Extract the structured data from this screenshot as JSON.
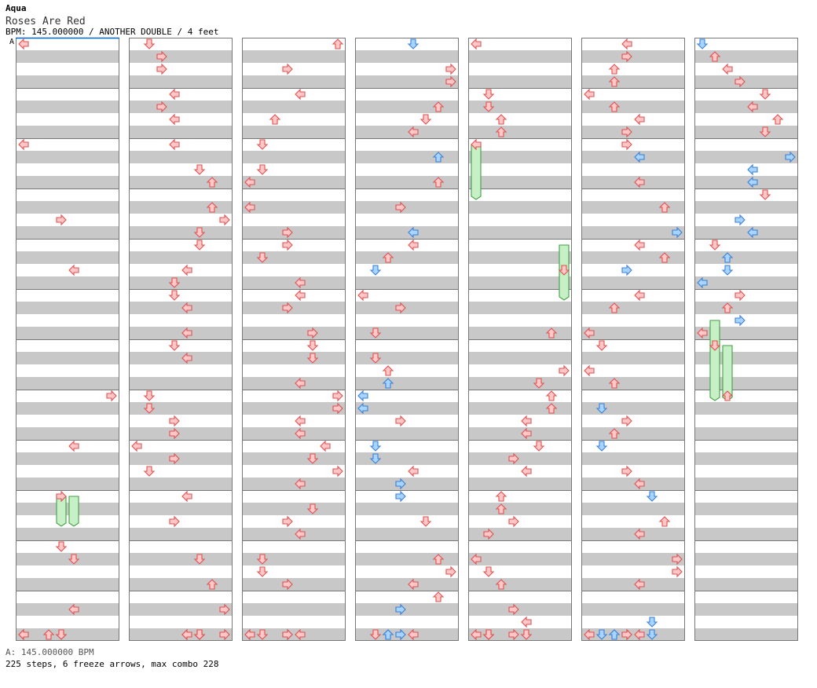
{
  "header": {
    "artist": "Aqua",
    "title": "Roses Are Red",
    "meta": "BPM: 145.000000 / ANOTHER DOUBLE / 4 feet",
    "bpm_marker": "A"
  },
  "footer": {
    "bpm_line": "A: 145.000000 BPM",
    "stats": "225 steps, 6 freeze arrows, max combo 228"
  },
  "colors": {
    "red_fill": "#ffc8c8",
    "red_stroke": "#e05050",
    "blue_fill": "#a8d4ff",
    "blue_stroke": "#3a80d8",
    "freeze_fill": "#c8f0c8",
    "freeze_stroke": "#40a040",
    "stripe": "#c8c8c8",
    "border": "#777777",
    "marker": "#0066cc"
  },
  "chart": {
    "columns": 7,
    "measures_per_column": 12,
    "lanes": 8,
    "arrow_kinds": {
      "L": "left",
      "D": "down",
      "U": "up",
      "R": "right"
    },
    "notes": [
      [
        0,
        0,
        "L",
        "red"
      ],
      [
        1,
        1,
        "D",
        "red"
      ],
      [
        2,
        7,
        "U",
        "red"
      ],
      [
        3,
        4,
        "D",
        "blue"
      ],
      [
        4,
        0,
        "L",
        "red"
      ],
      [
        5,
        3,
        "L",
        "red"
      ],
      [
        6,
        0,
        "D",
        "blue"
      ],
      [
        1,
        2,
        "R",
        "red"
      ],
      [
        5,
        3,
        "R",
        "red"
      ],
      [
        6,
        1,
        "U",
        "red"
      ],
      [
        1,
        2,
        "R",
        "red"
      ],
      [
        2,
        3,
        "R",
        "red"
      ],
      [
        3,
        7,
        "R",
        "red"
      ],
      [
        5,
        2,
        "U",
        "red"
      ],
      [
        6,
        2,
        "L",
        "red"
      ],
      [
        3,
        7,
        "R",
        "red"
      ],
      [
        5,
        2,
        "U",
        "red"
      ],
      [
        6,
        3,
        "R",
        "red"
      ],
      [
        1,
        3,
        "L",
        "red"
      ],
      [
        2,
        4,
        "L",
        "red"
      ],
      [
        4,
        1,
        "D",
        "red"
      ],
      [
        5,
        0,
        "L",
        "red"
      ],
      [
        6,
        5,
        "D",
        "red"
      ],
      [
        1,
        2,
        "R",
        "red"
      ],
      [
        3,
        6,
        "U",
        "red"
      ],
      [
        4,
        1,
        "D",
        "red"
      ],
      [
        5,
        2,
        "U",
        "red"
      ],
      [
        6,
        4,
        "L",
        "red"
      ],
      [
        1,
        3,
        "L",
        "red"
      ],
      [
        2,
        2,
        "U",
        "red"
      ],
      [
        3,
        5,
        "D",
        "red"
      ],
      [
        4,
        2,
        "U",
        "red"
      ],
      [
        5,
        4,
        "L",
        "red"
      ],
      [
        6,
        6,
        "U",
        "red"
      ],
      [
        3,
        4,
        "L",
        "red"
      ],
      [
        4,
        2,
        "U",
        "red"
      ],
      [
        5,
        3,
        "R",
        "red"
      ],
      [
        6,
        5,
        "D",
        "red"
      ],
      [
        0,
        0,
        "L",
        "red"
      ],
      [
        1,
        3,
        "L",
        "red"
      ],
      [
        2,
        1,
        "D",
        "red"
      ],
      [
        4,
        0,
        "L",
        "red"
      ],
      [
        5,
        3,
        "R",
        "red"
      ],
      [
        3,
        6,
        "U",
        "blue"
      ],
      [
        5,
        4,
        "L",
        "blue"
      ],
      [
        6,
        7,
        "R",
        "blue"
      ],
      [
        1,
        5,
        "D",
        "red"
      ],
      [
        2,
        1,
        "D",
        "red"
      ],
      [
        6,
        4,
        "L",
        "blue"
      ],
      [
        1,
        6,
        "U",
        "red"
      ],
      [
        2,
        0,
        "L",
        "red"
      ],
      [
        3,
        6,
        "U",
        "red"
      ],
      [
        5,
        4,
        "L",
        "red"
      ],
      [
        6,
        4,
        "L",
        "blue"
      ],
      [
        6,
        5,
        "D",
        "red"
      ],
      [
        1,
        6,
        "U",
        "red"
      ],
      [
        2,
        0,
        "L",
        "red"
      ],
      [
        3,
        3,
        "R",
        "red"
      ],
      [
        5,
        6,
        "U",
        "red"
      ],
      [
        0,
        3,
        "R",
        "red"
      ],
      [
        1,
        7,
        "R",
        "red"
      ],
      [
        6,
        3,
        "R",
        "blue"
      ],
      [
        1,
        5,
        "D",
        "red"
      ],
      [
        2,
        3,
        "R",
        "red"
      ],
      [
        3,
        4,
        "L",
        "blue"
      ],
      [
        5,
        7,
        "R",
        "blue"
      ],
      [
        6,
        4,
        "L",
        "blue"
      ],
      [
        1,
        5,
        "D",
        "red"
      ],
      [
        2,
        3,
        "R",
        "red"
      ],
      [
        3,
        4,
        "L",
        "red"
      ],
      [
        5,
        4,
        "L",
        "red"
      ],
      [
        6,
        1,
        "D",
        "red"
      ],
      [
        2,
        1,
        "D",
        "red"
      ],
      [
        3,
        2,
        "U",
        "red"
      ],
      [
        5,
        6,
        "U",
        "red"
      ],
      [
        6,
        2,
        "U",
        "blue"
      ],
      [
        0,
        4,
        "L",
        "red"
      ],
      [
        1,
        4,
        "L",
        "red"
      ],
      [
        3,
        1,
        "D",
        "blue"
      ],
      [
        4,
        7,
        "D",
        "red"
      ],
      [
        5,
        3,
        "R",
        "blue"
      ],
      [
        6,
        2,
        "D",
        "blue"
      ],
      [
        1,
        3,
        "D",
        "red"
      ],
      [
        2,
        4,
        "L",
        "red"
      ],
      [
        6,
        0,
        "L",
        "blue"
      ],
      [
        1,
        3,
        "D",
        "red"
      ],
      [
        2,
        4,
        "L",
        "red"
      ],
      [
        3,
        0,
        "L",
        "red"
      ],
      [
        5,
        4,
        "L",
        "red"
      ],
      [
        6,
        3,
        "R",
        "red"
      ],
      [
        1,
        4,
        "L",
        "red"
      ],
      [
        2,
        3,
        "R",
        "red"
      ],
      [
        3,
        3,
        "R",
        "red"
      ],
      [
        5,
        2,
        "U",
        "red"
      ],
      [
        6,
        2,
        "U",
        "red"
      ],
      [
        6,
        3,
        "R",
        "blue"
      ],
      [
        1,
        4,
        "L",
        "red"
      ],
      [
        2,
        5,
        "R",
        "red"
      ],
      [
        3,
        1,
        "D",
        "red"
      ],
      [
        4,
        6,
        "U",
        "red"
      ],
      [
        5,
        0,
        "L",
        "red"
      ],
      [
        6,
        0,
        "L",
        "red"
      ],
      [
        1,
        3,
        "D",
        "red"
      ],
      [
        2,
        5,
        "D",
        "red"
      ],
      [
        5,
        1,
        "D",
        "red"
      ],
      [
        6,
        1,
        "D",
        "red"
      ],
      [
        1,
        4,
        "L",
        "red"
      ],
      [
        2,
        5,
        "D",
        "red"
      ],
      [
        3,
        1,
        "D",
        "red"
      ],
      [
        3,
        2,
        "U",
        "red"
      ],
      [
        4,
        7,
        "R",
        "red"
      ],
      [
        5,
        0,
        "L",
        "red"
      ],
      [
        2,
        4,
        "L",
        "red"
      ],
      [
        3,
        2,
        "U",
        "blue"
      ],
      [
        4,
        5,
        "D",
        "red"
      ],
      [
        5,
        2,
        "U",
        "red"
      ],
      [
        0,
        7,
        "R",
        "red"
      ],
      [
        1,
        1,
        "D",
        "red"
      ],
      [
        2,
        7,
        "R",
        "red"
      ],
      [
        3,
        0,
        "L",
        "blue"
      ],
      [
        4,
        6,
        "U",
        "red"
      ],
      [
        6,
        2,
        "U",
        "red"
      ],
      [
        1,
        1,
        "D",
        "red"
      ],
      [
        2,
        7,
        "R",
        "red"
      ],
      [
        3,
        0,
        "L",
        "blue"
      ],
      [
        4,
        6,
        "U",
        "red"
      ],
      [
        5,
        1,
        "D",
        "blue"
      ],
      [
        1,
        3,
        "R",
        "red"
      ],
      [
        2,
        4,
        "L",
        "red"
      ],
      [
        3,
        3,
        "R",
        "red"
      ],
      [
        4,
        4,
        "L",
        "red"
      ],
      [
        5,
        3,
        "R",
        "red"
      ],
      [
        1,
        3,
        "R",
        "red"
      ],
      [
        2,
        4,
        "L",
        "red"
      ],
      [
        4,
        4,
        "L",
        "red"
      ],
      [
        5,
        2,
        "U",
        "red"
      ],
      [
        0,
        4,
        "L",
        "red"
      ],
      [
        1,
        0,
        "L",
        "red"
      ],
      [
        2,
        6,
        "L",
        "red"
      ],
      [
        3,
        1,
        "D",
        "blue"
      ],
      [
        4,
        5,
        "D",
        "red"
      ],
      [
        5,
        1,
        "D",
        "blue"
      ],
      [
        1,
        3,
        "R",
        "red"
      ],
      [
        2,
        5,
        "D",
        "red"
      ],
      [
        3,
        1,
        "D",
        "blue"
      ],
      [
        4,
        3,
        "R",
        "red"
      ],
      [
        1,
        1,
        "D",
        "red"
      ],
      [
        2,
        7,
        "R",
        "red"
      ],
      [
        3,
        4,
        "L",
        "red"
      ],
      [
        4,
        4,
        "L",
        "red"
      ],
      [
        5,
        3,
        "R",
        "red"
      ],
      [
        2,
        4,
        "L",
        "red"
      ],
      [
        3,
        3,
        "R",
        "blue"
      ],
      [
        5,
        4,
        "L",
        "red"
      ],
      [
        0,
        3,
        "R",
        "red"
      ],
      [
        1,
        4,
        "L",
        "red"
      ],
      [
        3,
        3,
        "R",
        "blue"
      ],
      [
        4,
        2,
        "U",
        "red"
      ],
      [
        5,
        5,
        "D",
        "blue"
      ],
      [
        2,
        5,
        "D",
        "red"
      ],
      [
        4,
        2,
        "U",
        "red"
      ],
      [
        1,
        3,
        "R",
        "red"
      ],
      [
        2,
        3,
        "R",
        "red"
      ],
      [
        3,
        5,
        "D",
        "red"
      ],
      [
        4,
        3,
        "R",
        "red"
      ],
      [
        5,
        6,
        "U",
        "red"
      ],
      [
        2,
        4,
        "L",
        "red"
      ],
      [
        4,
        1,
        "R",
        "red"
      ],
      [
        5,
        4,
        "L",
        "red"
      ],
      [
        0,
        3,
        "D",
        "red"
      ],
      [
        0,
        4,
        "D",
        "red"
      ],
      [
        1,
        5,
        "D",
        "red"
      ],
      [
        2,
        1,
        "D",
        "red"
      ],
      [
        3,
        6,
        "U",
        "red"
      ],
      [
        4,
        0,
        "L",
        "red"
      ],
      [
        5,
        7,
        "R",
        "red"
      ],
      [
        2,
        1,
        "D",
        "red"
      ],
      [
        3,
        7,
        "R",
        "red"
      ],
      [
        4,
        1,
        "D",
        "red"
      ],
      [
        5,
        7,
        "R",
        "red"
      ],
      [
        1,
        6,
        "U",
        "red"
      ],
      [
        2,
        3,
        "R",
        "red"
      ],
      [
        3,
        4,
        "L",
        "red"
      ],
      [
        4,
        2,
        "U",
        "red"
      ],
      [
        5,
        4,
        "L",
        "red"
      ],
      [
        3,
        6,
        "U",
        "red"
      ],
      [
        0,
        4,
        "L",
        "red"
      ],
      [
        1,
        7,
        "R",
        "red"
      ],
      [
        3,
        3,
        "R",
        "blue"
      ],
      [
        4,
        3,
        "R",
        "red"
      ],
      [
        4,
        4,
        "L",
        "red"
      ],
      [
        5,
        5,
        "D",
        "blue"
      ],
      [
        0,
        3,
        "D",
        "red"
      ],
      [
        1,
        4,
        "L",
        "red"
      ],
      [
        2,
        0,
        "L",
        "blue"
      ],
      [
        3,
        3,
        "R",
        "blue"
      ],
      [
        4,
        4,
        "D",
        "red"
      ],
      [
        5,
        5,
        "D",
        "blue"
      ],
      [
        5,
        3,
        "R",
        "red"
      ],
      [
        0,
        3,
        "D",
        "red"
      ],
      [
        1,
        5,
        "D",
        "red"
      ],
      [
        2,
        0,
        "L",
        "red"
      ],
      [
        3,
        4,
        "L",
        "red"
      ],
      [
        4,
        1,
        "D",
        "red"
      ],
      [
        5,
        4,
        "L",
        "red"
      ],
      [
        1,
        5,
        "D",
        "red"
      ],
      [
        2,
        1,
        "D",
        "red"
      ],
      [
        4,
        1,
        "D",
        "red"
      ],
      [
        0,
        2,
        "U",
        "red"
      ],
      [
        1,
        4,
        "L",
        "red"
      ],
      [
        3,
        2,
        "U",
        "blue"
      ],
      [
        4,
        3,
        "R",
        "red"
      ],
      [
        5,
        2,
        "U",
        "blue"
      ],
      [
        0,
        0,
        "L",
        "red"
      ],
      [
        1,
        7,
        "R",
        "red"
      ],
      [
        2,
        3,
        "R",
        "blue"
      ],
      [
        3,
        2,
        "U",
        "blue"
      ],
      [
        4,
        1,
        "D",
        "red"
      ],
      [
        5,
        2,
        "U",
        "blue"
      ],
      [
        5,
        3,
        "R",
        "red"
      ],
      [
        0,
        0,
        "L",
        "red"
      ],
      [
        1,
        5,
        "D",
        "red"
      ],
      [
        2,
        3,
        "R",
        "red"
      ],
      [
        3,
        1,
        "D",
        "red"
      ],
      [
        4,
        0,
        "L",
        "red"
      ],
      [
        5,
        0,
        "L",
        "red"
      ],
      [
        1,
        5,
        "D",
        "red"
      ],
      [
        2,
        4,
        "L",
        "red"
      ],
      [
        4,
        1,
        "D",
        "red"
      ],
      [
        5,
        1,
        "D",
        "blue"
      ]
    ],
    "freezes": [
      [
        4,
        0,
        "L"
      ],
      [
        4,
        7,
        "D"
      ],
      [
        0,
        3,
        "D"
      ],
      [
        0,
        4,
        "D"
      ],
      [
        6,
        1,
        "D"
      ],
      [
        6,
        2,
        "U"
      ]
    ]
  }
}
